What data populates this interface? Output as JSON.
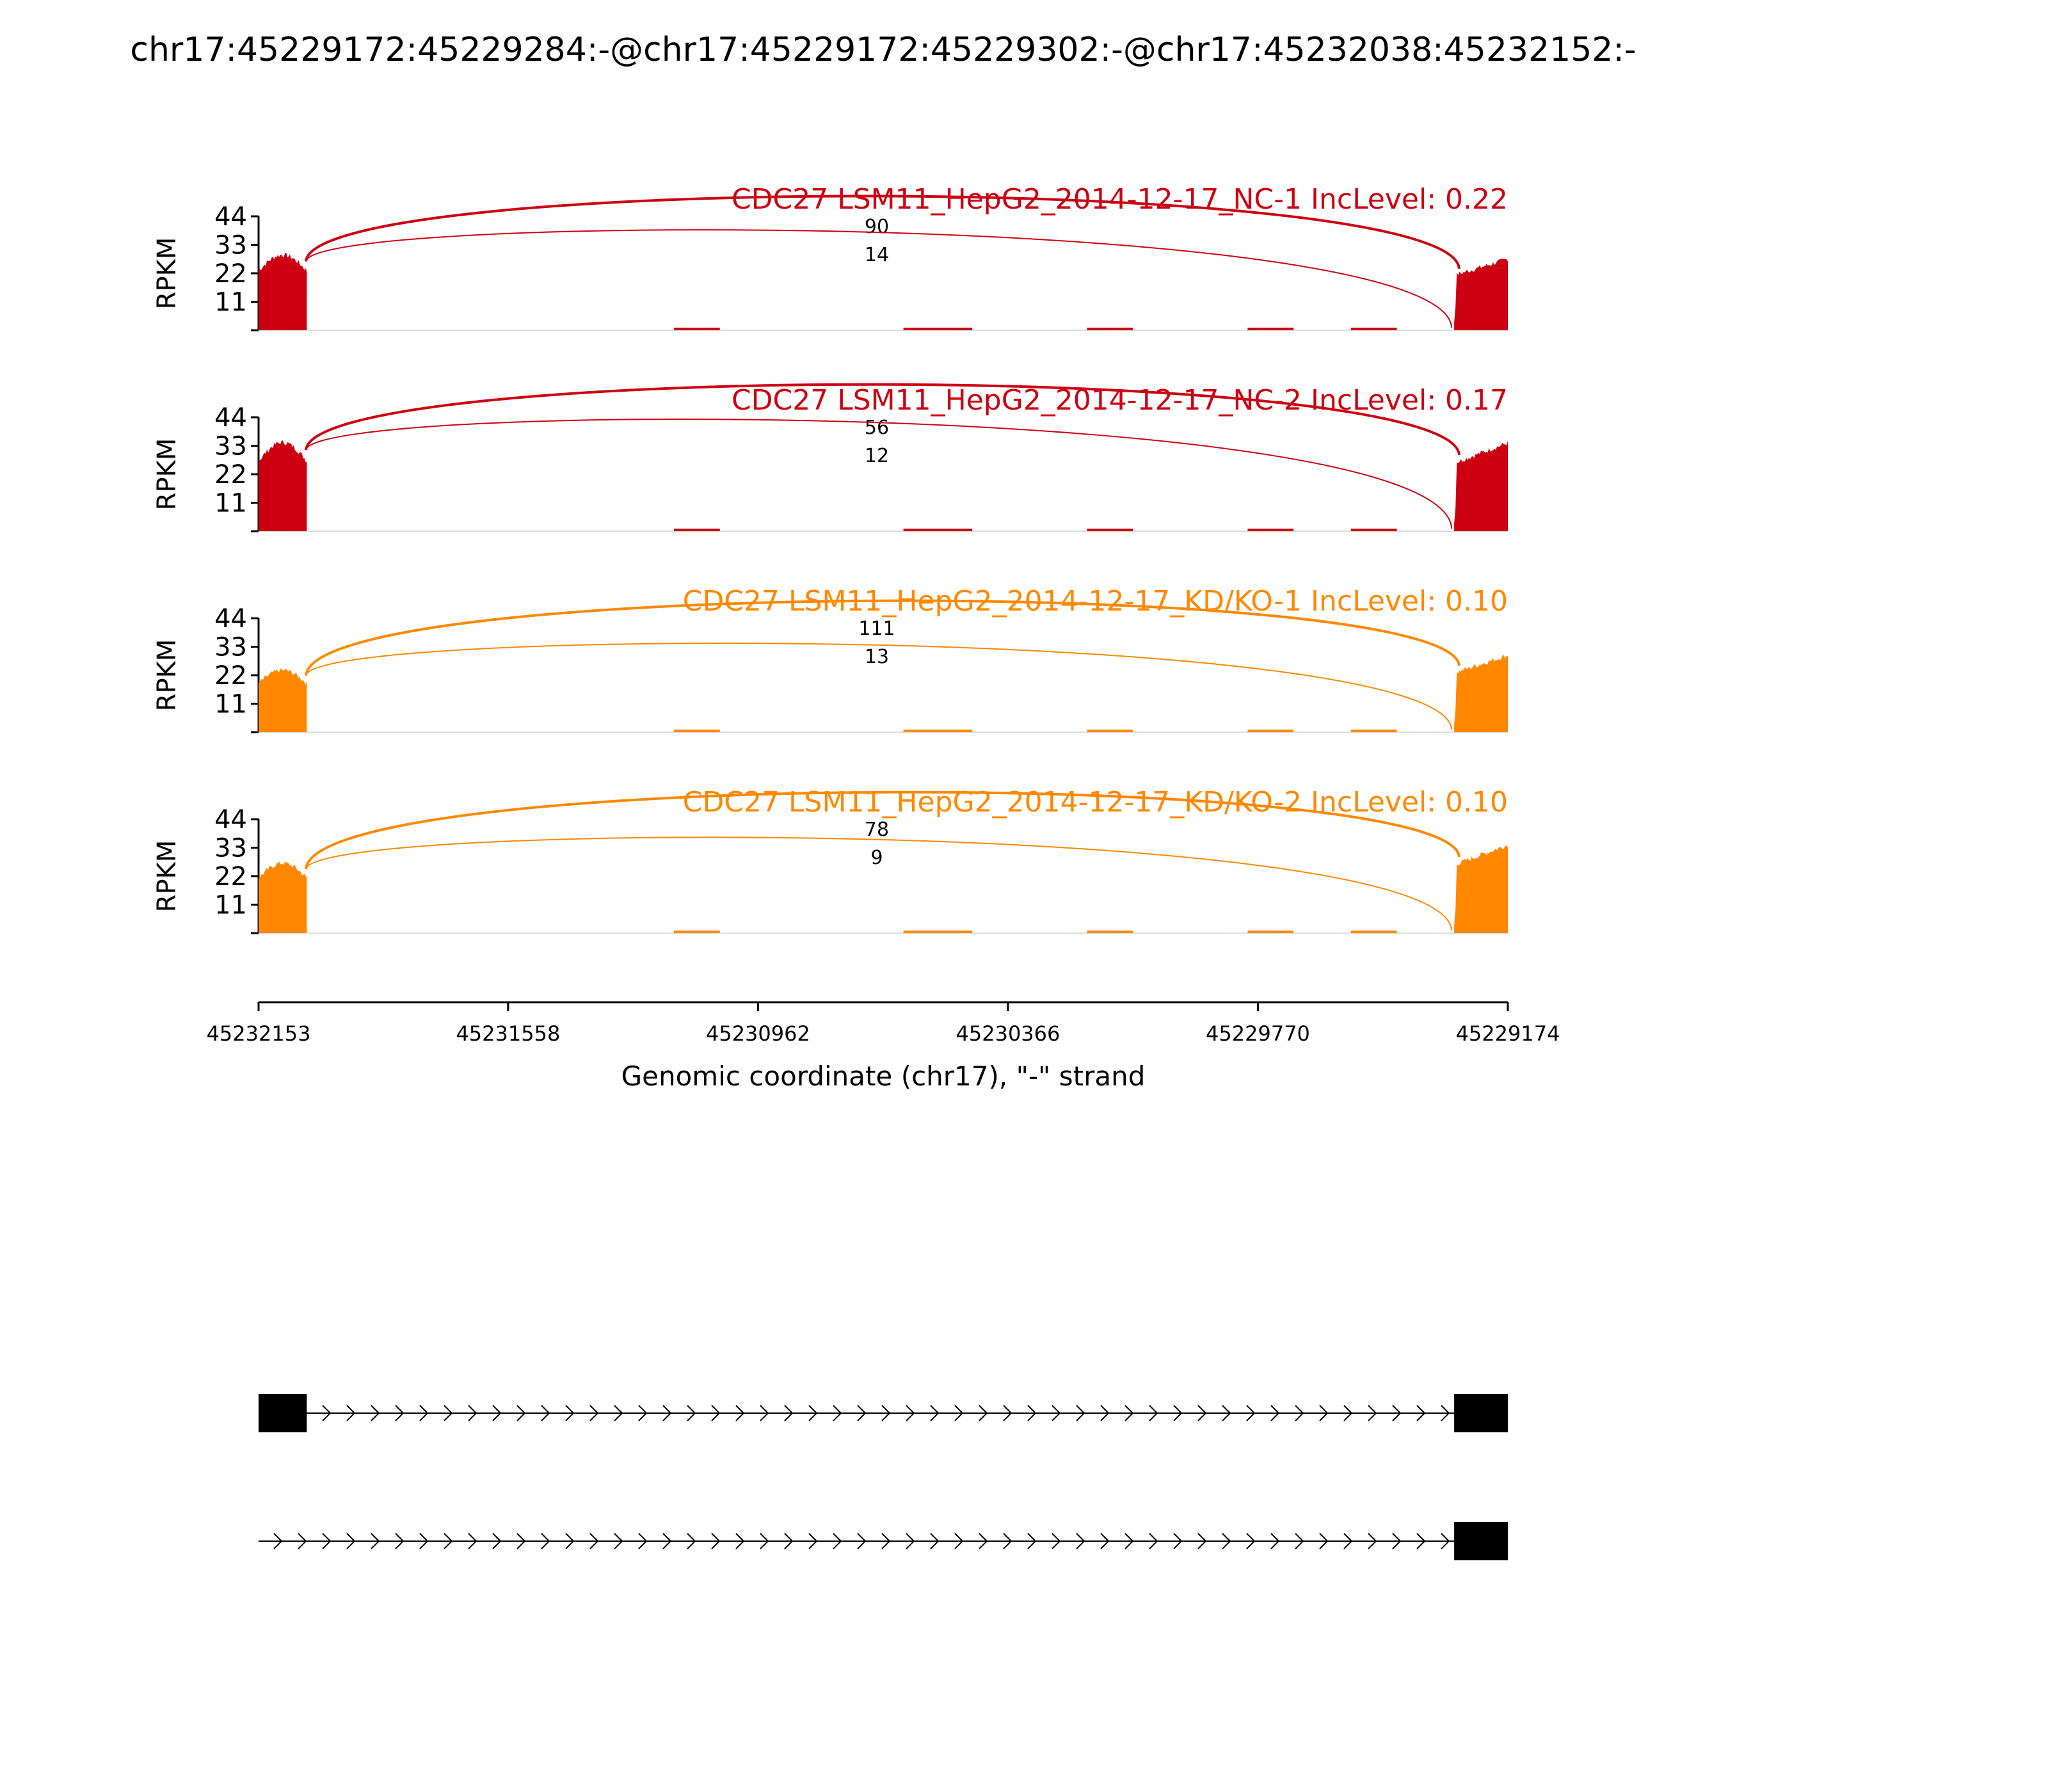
{
  "chart_data": {
    "type": "sashimi",
    "title": "chr17:45229172:45229284:-@chr17:45229172:45229302:-@chr17:45232038:45232152:-",
    "xlabel": "Genomic coordinate (chr17), \"-\" strand",
    "ylabel": "RPKM",
    "ylim": [
      0,
      44
    ],
    "yticks": [
      "11",
      "22",
      "33",
      "44"
    ],
    "xlim": [
      45232153,
      45229174
    ],
    "xticks": [
      "45232153",
      "45231558",
      "45230962",
      "45230366",
      "45229770",
      "45229174"
    ],
    "panels": [
      {
        "label": "CDC27 LSM11_HepG2_2014-12-17_NC-1 IncLevel: 0.22",
        "color": "#cc0011",
        "exon1_level": 28,
        "intron_level": 1,
        "exon2_level": 25,
        "junctions": [
          {
            "count": "90",
            "from": 45232040,
            "to": 45229290
          },
          {
            "count": "14",
            "from": 45232040,
            "to": 45229308
          }
        ]
      },
      {
        "label": "CDC27 LSM11_HepG2_2014-12-17_NC-2 IncLevel: 0.17",
        "color": "#cc0011",
        "exon1_level": 33,
        "intron_level": 1,
        "exon2_level": 31,
        "junctions": [
          {
            "count": "56",
            "from": 45232040,
            "to": 45229290
          },
          {
            "count": "12",
            "from": 45232040,
            "to": 45229308
          }
        ]
      },
      {
        "label": "CDC27 LSM11_HepG2_2014-12-17_KD/KO-1 IncLevel: 0.10",
        "color": "#ff8800",
        "exon1_level": 23,
        "intron_level": 1,
        "exon2_level": 27,
        "junctions": [
          {
            "count": "111",
            "from": 45232040,
            "to": 45229290
          },
          {
            "count": "13",
            "from": 45232040,
            "to": 45229308
          }
        ]
      },
      {
        "label": "CDC27 LSM11_HepG2_2014-12-17_KD/KO-2 IncLevel: 0.10",
        "color": "#ff8800",
        "exon1_level": 26,
        "intron_level": 1,
        "exon2_level": 31,
        "junctions": [
          {
            "count": "78",
            "from": 45232040,
            "to": 45229290
          },
          {
            "count": "9",
            "from": 45232040,
            "to": 45229308
          }
        ]
      }
    ],
    "isoforms": [
      {
        "exons": [
          [
            45232153,
            45232038
          ],
          [
            45229302,
            45229174
          ]
        ]
      },
      {
        "exons": [
          [
            45229302,
            45229174
          ]
        ]
      }
    ]
  }
}
